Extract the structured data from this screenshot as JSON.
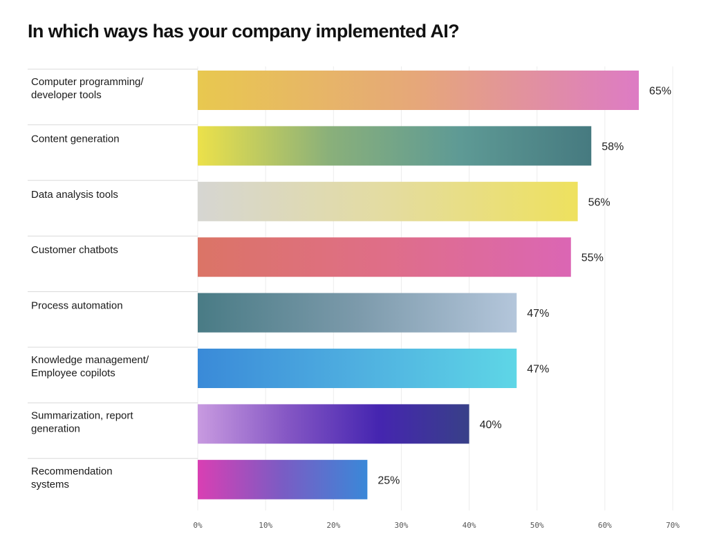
{
  "chart_data": {
    "type": "bar",
    "orientation": "horizontal",
    "title": "In which ways has your company implemented AI?",
    "categories": [
      "Computer programming/ developer tools",
      "Content generation",
      "Data analysis tools",
      "Customer chatbots",
      "Process automation",
      "Knowledge management/ Employee copilots",
      "Summarization, report generation",
      "Recommendation systems"
    ],
    "category_label_lines": [
      [
        "Computer programming/",
        "developer tools"
      ],
      [
        "Content generation"
      ],
      [
        "Data analysis tools"
      ],
      [
        "Customer chatbots"
      ],
      [
        "Process automation"
      ],
      [
        "Knowledge management/",
        "Employee copilots"
      ],
      [
        "Summarization, report",
        "generation"
      ],
      [
        "Recommendation",
        "systems"
      ]
    ],
    "values": [
      65,
      58,
      56,
      55,
      47,
      47,
      40,
      25
    ],
    "value_labels": [
      "65%",
      "58%",
      "56%",
      "55%",
      "47%",
      "47%",
      "40%",
      "25%"
    ],
    "xlim": [
      0,
      70
    ],
    "x_ticks": [
      0,
      10,
      20,
      30,
      40,
      50,
      60,
      70
    ],
    "x_tick_labels": [
      "0%",
      "10%",
      "20%",
      "30%",
      "40%",
      "50%",
      "60%",
      "70%"
    ],
    "grid": "vertical",
    "bar_gradients": [
      [
        "#e8c84f",
        "#e6a77a",
        "#dd7bc4"
      ],
      [
        "#ece14a",
        "#8ab07a",
        "#5e9a95",
        "#467a80"
      ],
      [
        "#d6d6d2",
        "#e4dca0",
        "#eee15e"
      ],
      [
        "#db7466",
        "#df6e88",
        "#db66b4"
      ],
      [
        "#497b85",
        "#7c9aab",
        "#b4c6db"
      ],
      [
        "#3a8ad8",
        "#4fafe0",
        "#5ed6e6"
      ],
      [
        "#c89ae0",
        "#8456c4",
        "#4525b0",
        "#384088"
      ],
      [
        "#d93fb3",
        "#7a5cc4",
        "#3a88d8"
      ]
    ]
  }
}
